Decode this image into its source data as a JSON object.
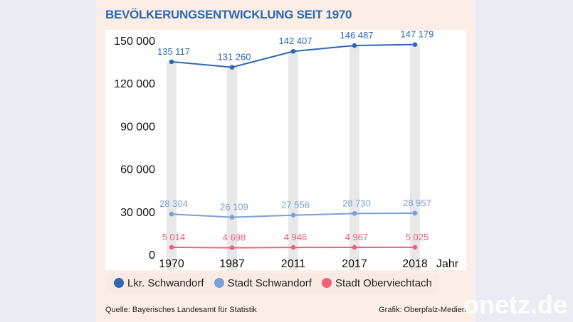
{
  "chart_data": {
    "type": "line",
    "title": "BEVÖLKERUNGSENTWICKLUNG SEIT 1970",
    "xlabel": "Jahr",
    "ylabel": "",
    "categories": [
      "1970",
      "1987",
      "2011",
      "2017",
      "2018"
    ],
    "ylim": [
      0,
      150000
    ],
    "yticks": [
      "0",
      "30 000",
      "60 000",
      "90 000",
      "120 000",
      "150 000"
    ],
    "ytick_values": [
      0,
      30000,
      60000,
      90000,
      120000,
      150000
    ],
    "legend_position": "bottom",
    "series": [
      {
        "name": "Lkr. Schwandorf",
        "color": "#2f67b1",
        "values": [
          135117,
          131260,
          142407,
          146487,
          147179
        ],
        "labels": [
          "135 117",
          "131 260",
          "142 407",
          "146 487",
          "147 179"
        ]
      },
      {
        "name": "Stadt Schwandorf",
        "color": "#7b9fd6",
        "values": [
          28304,
          26109,
          27556,
          28730,
          28957
        ],
        "labels": [
          "28 304",
          "26 109",
          "27 556",
          "28 730",
          "28 957"
        ]
      },
      {
        "name": "Stadt Oberviechtach",
        "color": "#f0607a",
        "values": [
          5014,
          4698,
          4946,
          4967,
          5025
        ],
        "labels": [
          "5 014",
          "4 698",
          "4 946",
          "4 967",
          "5 025"
        ]
      }
    ]
  },
  "footer": {
    "source": "Quelle: Bayerisches Landesamt für Statistik",
    "credit": "Grafik: Oberpfalz-Medien"
  },
  "watermark": "onetz.de"
}
